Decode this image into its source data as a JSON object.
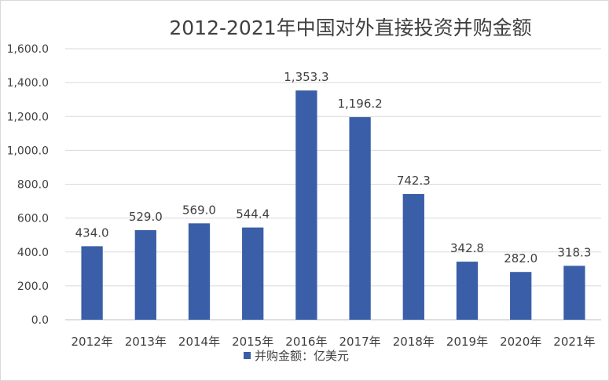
{
  "chart_data": {
    "type": "bar",
    "title": "2012-2021年中国对外直接投资并购金额",
    "categories": [
      "2012年",
      "2013年",
      "2014年",
      "2015年",
      "2016年",
      "2017年",
      "2018年",
      "2019年",
      "2020年",
      "2021年"
    ],
    "series": [
      {
        "name": "并购金额：亿美元",
        "values": [
          434.0,
          529.0,
          569.0,
          544.4,
          1353.3,
          1196.2,
          742.3,
          342.8,
          282.0,
          318.3
        ],
        "labels": [
          "434.0",
          "529.0",
          "569.0",
          "544.4",
          "1,353.3",
          "1,196.2",
          "742.3",
          "342.8",
          "282.0",
          "318.3"
        ]
      }
    ],
    "yticks": [
      "0.0",
      "200.0",
      "400.0",
      "600.0",
      "800.0",
      "1,000.0",
      "1,200.0",
      "1,400.0",
      "1,600.0"
    ],
    "ylim": [
      0,
      1600
    ],
    "grid": true,
    "legend_position": "bottom",
    "colors": {
      "bar": "#3a5ea7"
    }
  }
}
